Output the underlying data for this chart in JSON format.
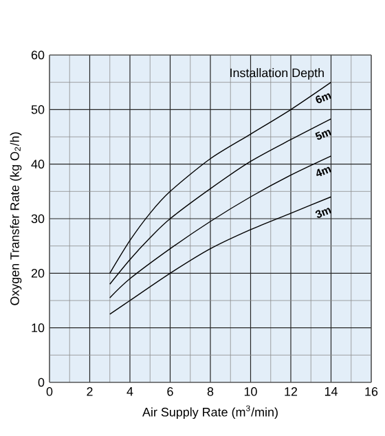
{
  "chart_data": {
    "type": "line",
    "xlabel": "Air Supply Rate  (m$^{3}$/min)",
    "ylabel": "Oxygen Transfer Rate (kg O$_{2}$/h)",
    "legend_title": "Installation Depth",
    "series": [
      {
        "name": "6m",
        "color": "#000000",
        "x": [
          3,
          4,
          5,
          6,
          8,
          10,
          12,
          14
        ],
        "values": [
          20,
          26,
          31,
          35,
          41,
          45.5,
          50,
          55
        ]
      },
      {
        "name": "5m",
        "color": "#000000",
        "x": [
          3,
          4,
          5,
          6,
          8,
          10,
          12,
          14
        ],
        "values": [
          18,
          22.5,
          26.5,
          30,
          35.5,
          40.5,
          44.5,
          48.3
        ]
      },
      {
        "name": "4m",
        "color": "#000000",
        "x": [
          3,
          4,
          6,
          8,
          10,
          12,
          14
        ],
        "values": [
          15.5,
          19,
          24.5,
          29.5,
          34,
          38,
          41.5
        ]
      },
      {
        "name": "3m",
        "color": "#000000",
        "x": [
          3,
          4,
          6,
          8,
          10,
          12,
          14
        ],
        "values": [
          12.5,
          15,
          20,
          24.5,
          28,
          31,
          34
        ]
      }
    ],
    "xlim": [
      0,
      16
    ],
    "xticks": [
      0,
      2,
      4,
      6,
      8,
      10,
      12,
      14,
      16
    ],
    "ylim": [
      0,
      60
    ],
    "yticks": [
      0,
      10,
      20,
      30,
      40,
      50,
      60
    ],
    "grid": true,
    "marker": "none",
    "line_style": "solid"
  }
}
